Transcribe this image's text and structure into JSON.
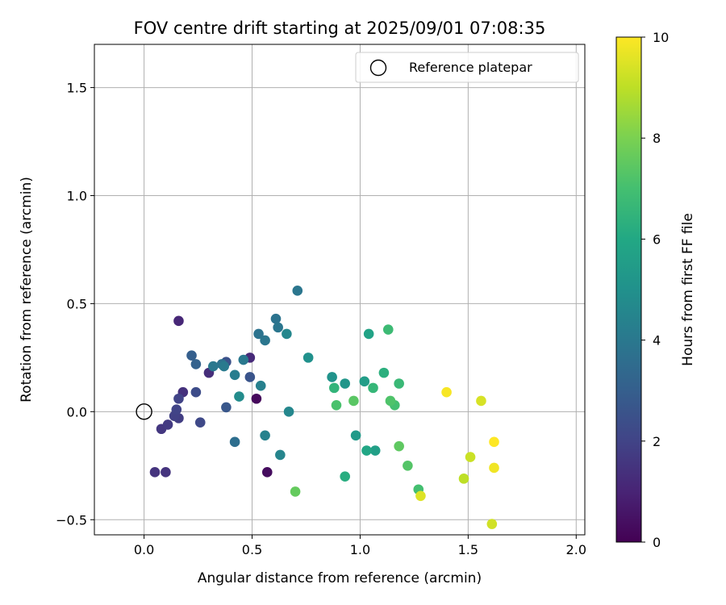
{
  "chart_data": {
    "type": "scatter",
    "title": "FOV centre drift starting at 2025/09/01 07:08:35",
    "xlabel": "Angular distance from reference (arcmin)",
    "ylabel": "Rotation from reference (arcmin)",
    "xlim": [
      -0.23,
      2.04
    ],
    "ylim": [
      -0.57,
      1.7
    ],
    "xticks": [
      0.0,
      0.5,
      1.0,
      1.5,
      2.0
    ],
    "xtick_labels": [
      "0.0",
      "0.5",
      "1.0",
      "1.5",
      "2.0"
    ],
    "yticks": [
      -0.5,
      0.0,
      0.5,
      1.0,
      1.5
    ],
    "ytick_labels": [
      "−0.5",
      "0.0",
      "0.5",
      "1.0",
      "1.5"
    ],
    "grid": true,
    "legend": {
      "position": "top-right",
      "entries": [
        "Reference platepar"
      ]
    },
    "reference_point": {
      "x": 0.0,
      "y": 0.0
    },
    "colorbar": {
      "label": "Hours from first FF file",
      "colormap": "viridis",
      "range": [
        0,
        10
      ],
      "ticks": [
        0,
        2,
        4,
        6,
        8,
        10
      ],
      "tick_labels": [
        "0",
        "2",
        "4",
        "6",
        "8",
        "10"
      ]
    },
    "points": [
      {
        "x": 0.52,
        "y": 0.06,
        "h": 0.2
      },
      {
        "x": 0.57,
        "y": -0.28,
        "h": 0.3
      },
      {
        "x": 0.16,
        "y": 0.42,
        "h": 1.1
      },
      {
        "x": 0.49,
        "y": 0.25,
        "h": 1.2
      },
      {
        "x": 0.3,
        "y": 0.18,
        "h": 1.3
      },
      {
        "x": 0.18,
        "y": 0.09,
        "h": 1.4
      },
      {
        "x": 0.05,
        "y": -0.28,
        "h": 1.5
      },
      {
        "x": 0.1,
        "y": -0.28,
        "h": 1.5
      },
      {
        "x": 0.08,
        "y": -0.08,
        "h": 1.6
      },
      {
        "x": 0.11,
        "y": -0.06,
        "h": 1.7
      },
      {
        "x": 0.16,
        "y": -0.03,
        "h": 1.8
      },
      {
        "x": 0.14,
        "y": -0.02,
        "h": 1.9
      },
      {
        "x": 0.15,
        "y": 0.01,
        "h": 2.0
      },
      {
        "x": 0.16,
        "y": 0.06,
        "h": 2.0
      },
      {
        "x": 0.26,
        "y": -0.05,
        "h": 2.2
      },
      {
        "x": 0.24,
        "y": 0.09,
        "h": 2.3
      },
      {
        "x": 0.38,
        "y": 0.23,
        "h": 2.5
      },
      {
        "x": 0.49,
        "y": 0.16,
        "h": 2.6
      },
      {
        "x": 0.38,
        "y": 0.02,
        "h": 2.7
      },
      {
        "x": 0.22,
        "y": 0.26,
        "h": 3.0
      },
      {
        "x": 0.24,
        "y": 0.22,
        "h": 3.1
      },
      {
        "x": 0.42,
        "y": -0.14,
        "h": 3.6
      },
      {
        "x": 0.36,
        "y": 0.22,
        "h": 3.7
      },
      {
        "x": 0.53,
        "y": 0.36,
        "h": 3.8
      },
      {
        "x": 0.61,
        "y": 0.43,
        "h": 3.8
      },
      {
        "x": 0.62,
        "y": 0.39,
        "h": 3.9
      },
      {
        "x": 0.56,
        "y": 0.33,
        "h": 3.9
      },
      {
        "x": 0.71,
        "y": 0.56,
        "h": 3.9
      },
      {
        "x": 0.46,
        "y": 0.24,
        "h": 4.0
      },
      {
        "x": 0.32,
        "y": 0.21,
        "h": 4.0
      },
      {
        "x": 0.37,
        "y": 0.21,
        "h": 4.1
      },
      {
        "x": 0.42,
        "y": 0.17,
        "h": 4.2
      },
      {
        "x": 0.54,
        "y": 0.12,
        "h": 4.3
      },
      {
        "x": 0.56,
        "y": -0.11,
        "h": 4.4
      },
      {
        "x": 0.63,
        "y": -0.2,
        "h": 4.5
      },
      {
        "x": 0.66,
        "y": 0.36,
        "h": 4.6
      },
      {
        "x": 0.67,
        "y": 0.0,
        "h": 4.6
      },
      {
        "x": 0.44,
        "y": 0.07,
        "h": 4.8
      },
      {
        "x": 0.76,
        "y": 0.25,
        "h": 5.0
      },
      {
        "x": 0.87,
        "y": 0.16,
        "h": 5.1
      },
      {
        "x": 0.93,
        "y": 0.13,
        "h": 5.2
      },
      {
        "x": 0.98,
        "y": -0.11,
        "h": 5.4
      },
      {
        "x": 1.02,
        "y": 0.14,
        "h": 5.5
      },
      {
        "x": 1.07,
        "y": -0.18,
        "h": 5.6
      },
      {
        "x": 1.04,
        "y": 0.36,
        "h": 5.8
      },
      {
        "x": 1.03,
        "y": -0.18,
        "h": 5.9
      },
      {
        "x": 0.93,
        "y": -0.3,
        "h": 6.2
      },
      {
        "x": 1.11,
        "y": 0.18,
        "h": 6.3
      },
      {
        "x": 0.88,
        "y": 0.11,
        "h": 6.5
      },
      {
        "x": 1.06,
        "y": 0.11,
        "h": 6.6
      },
      {
        "x": 1.18,
        "y": 0.13,
        "h": 6.7
      },
      {
        "x": 1.13,
        "y": 0.38,
        "h": 6.8
      },
      {
        "x": 1.16,
        "y": 0.03,
        "h": 7.0
      },
      {
        "x": 1.27,
        "y": -0.36,
        "h": 7.0
      },
      {
        "x": 0.89,
        "y": 0.03,
        "h": 7.1
      },
      {
        "x": 1.14,
        "y": 0.05,
        "h": 7.2
      },
      {
        "x": 1.22,
        "y": -0.25,
        "h": 7.3
      },
      {
        "x": 0.97,
        "y": 0.05,
        "h": 7.4
      },
      {
        "x": 1.18,
        "y": -0.16,
        "h": 7.5
      },
      {
        "x": 0.7,
        "y": -0.37,
        "h": 7.6
      },
      {
        "x": 1.48,
        "y": -0.31,
        "h": 9.0
      },
      {
        "x": 1.51,
        "y": -0.21,
        "h": 9.2
      },
      {
        "x": 1.61,
        "y": -0.52,
        "h": 9.3
      },
      {
        "x": 1.56,
        "y": 0.05,
        "h": 9.4
      },
      {
        "x": 1.28,
        "y": -0.39,
        "h": 9.5
      },
      {
        "x": 1.62,
        "y": -0.26,
        "h": 9.8
      },
      {
        "x": 1.4,
        "y": 0.09,
        "h": 9.9
      },
      {
        "x": 1.62,
        "y": -0.14,
        "h": 10.0
      }
    ]
  }
}
